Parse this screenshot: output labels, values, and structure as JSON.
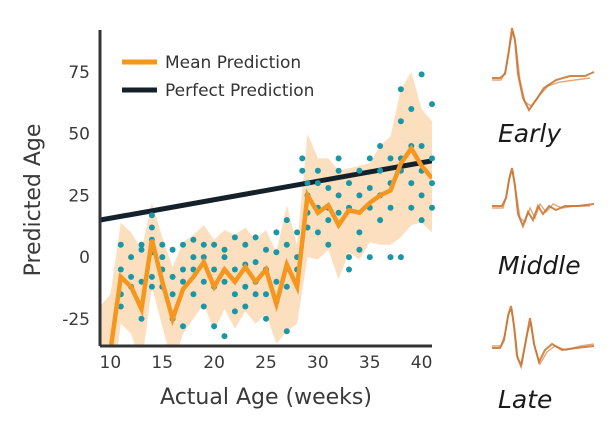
{
  "chart_data": {
    "type": "line",
    "xlabel": "Actual Age (weeks)",
    "ylabel": "Predicted Age",
    "xlim": [
      9,
      41
    ],
    "ylim": [
      -36,
      92
    ],
    "x_ticks": [
      10,
      15,
      20,
      25,
      30,
      35,
      40
    ],
    "y_ticks": [
      -25,
      0,
      25,
      50,
      75
    ],
    "legend_position": "top-left",
    "series": [
      {
        "name": "Mean Prediction",
        "type": "line",
        "color": "#f5961e",
        "x": [
          9,
          10,
          11,
          12,
          13,
          14,
          15,
          16,
          17,
          18,
          19,
          20,
          21,
          22,
          23,
          24,
          25,
          26,
          27,
          28,
          29,
          30,
          31,
          32,
          33,
          34,
          35,
          36,
          37,
          38,
          39,
          40,
          41
        ],
        "y": [
          -40,
          -38,
          -8,
          -12,
          -21,
          7,
          -10,
          -25,
          -13,
          -8,
          -2,
          -12,
          -5,
          -10,
          -4,
          -10,
          -5,
          -19,
          -3,
          -12,
          25,
          18,
          21,
          13,
          19,
          18,
          22,
          25,
          27,
          38,
          44,
          37,
          32
        ]
      },
      {
        "name": "Perfect Prediction",
        "type": "line",
        "color": "#14202a",
        "x": [
          9,
          41
        ],
        "y": [
          15,
          39
        ]
      }
    ],
    "confidence_band": {
      "color": "#fbd9b4",
      "x": [
        9,
        10,
        11,
        12,
        13,
        14,
        15,
        16,
        17,
        18,
        19,
        20,
        21,
        22,
        23,
        24,
        25,
        26,
        27,
        28,
        29,
        30,
        31,
        32,
        33,
        34,
        35,
        36,
        37,
        38,
        39,
        40,
        41
      ],
      "upper": [
        -20,
        -15,
        14,
        10,
        3,
        22,
        8,
        -4,
        6,
        9,
        13,
        7,
        11,
        9,
        12,
        7,
        11,
        2,
        21,
        5,
        50,
        40,
        40,
        35,
        36,
        37,
        38,
        45,
        49,
        68,
        75,
        60,
        55
      ],
      "lower": [
        -55,
        -60,
        -27,
        -31,
        -44,
        -12,
        -28,
        -44,
        -31,
        -25,
        -19,
        -30,
        -21,
        -29,
        -22,
        -27,
        -23,
        -35,
        -30,
        -27,
        0,
        -1,
        3,
        -9,
        2,
        -1,
        6,
        5,
        5,
        8,
        13,
        14,
        10
      ]
    },
    "scatter_points": {
      "color": "#1a97a6",
      "points": [
        [
          11,
          -5
        ],
        [
          11,
          -15
        ],
        [
          11,
          5
        ],
        [
          11,
          -20
        ],
        [
          12,
          -8
        ],
        [
          12,
          -12
        ],
        [
          12,
          0
        ],
        [
          13,
          3
        ],
        [
          13,
          -25
        ],
        [
          13,
          -10
        ],
        [
          13,
          5
        ],
        [
          14,
          12
        ],
        [
          14,
          7
        ],
        [
          14,
          -12
        ],
        [
          14,
          2
        ],
        [
          14,
          -8
        ],
        [
          14,
          17
        ],
        [
          15,
          -5
        ],
        [
          15,
          -12
        ],
        [
          15,
          5
        ],
        [
          15,
          0
        ],
        [
          16,
          -15
        ],
        [
          16,
          -25
        ],
        [
          16,
          -8
        ],
        [
          16,
          3
        ],
        [
          17,
          -28
        ],
        [
          17,
          -10
        ],
        [
          17,
          5
        ],
        [
          17,
          -5
        ],
        [
          18,
          0
        ],
        [
          18,
          -5
        ],
        [
          18,
          7
        ],
        [
          18,
          -15
        ],
        [
          19,
          -10
        ],
        [
          19,
          5
        ],
        [
          19,
          -20
        ],
        [
          19,
          0
        ],
        [
          20,
          -5
        ],
        [
          20,
          -28
        ],
        [
          20,
          5
        ],
        [
          20,
          -12
        ],
        [
          21,
          -32
        ],
        [
          21,
          -10
        ],
        [
          21,
          3
        ],
        [
          21,
          0
        ],
        [
          22,
          8
        ],
        [
          22,
          -5
        ],
        [
          22,
          -15
        ],
        [
          22,
          -22
        ],
        [
          23,
          -12
        ],
        [
          23,
          -3
        ],
        [
          23,
          5
        ],
        [
          23,
          -20
        ],
        [
          24,
          -10
        ],
        [
          24,
          -2
        ],
        [
          24,
          8
        ],
        [
          24,
          -15
        ],
        [
          25,
          -15
        ],
        [
          25,
          -5
        ],
        [
          25,
          3
        ],
        [
          25,
          -25
        ],
        [
          26,
          2
        ],
        [
          26,
          -10
        ],
        [
          26,
          10
        ],
        [
          26,
          -18
        ],
        [
          27,
          5
        ],
        [
          27,
          -30
        ],
        [
          27,
          15
        ],
        [
          27,
          -12
        ],
        [
          28,
          0
        ],
        [
          28,
          -5
        ],
        [
          28,
          10
        ],
        [
          28.5,
          40
        ],
        [
          28.5,
          35
        ],
        [
          29,
          25
        ],
        [
          29,
          18
        ],
        [
          29,
          30
        ],
        [
          29,
          12
        ],
        [
          30,
          30
        ],
        [
          30,
          20
        ],
        [
          30,
          10
        ],
        [
          30,
          35
        ],
        [
          31,
          15
        ],
        [
          31,
          28
        ],
        [
          31,
          5
        ],
        [
          31,
          20
        ],
        [
          32,
          35
        ],
        [
          32,
          25
        ],
        [
          32,
          40
        ],
        [
          32,
          18
        ],
        [
          33,
          30
        ],
        [
          33,
          0
        ],
        [
          33,
          -5
        ],
        [
          33,
          20
        ],
        [
          34,
          10
        ],
        [
          34,
          3
        ],
        [
          34,
          25
        ],
        [
          34,
          35
        ],
        [
          35,
          40
        ],
        [
          35,
          28
        ],
        [
          35,
          20
        ],
        [
          35,
          0
        ],
        [
          36,
          45
        ],
        [
          36,
          35
        ],
        [
          36,
          15
        ],
        [
          36,
          25
        ],
        [
          37,
          0
        ],
        [
          37,
          40
        ],
        [
          37,
          30
        ],
        [
          37,
          20
        ],
        [
          38,
          0
        ],
        [
          38,
          35
        ],
        [
          38,
          68
        ],
        [
          38,
          55
        ],
        [
          38,
          40
        ],
        [
          39,
          20
        ],
        [
          39,
          60
        ],
        [
          39,
          45
        ],
        [
          39,
          30
        ],
        [
          40,
          74
        ],
        [
          40,
          45
        ],
        [
          40,
          35
        ],
        [
          40,
          25
        ],
        [
          40,
          15
        ],
        [
          41,
          62
        ],
        [
          41,
          40
        ],
        [
          41,
          20
        ],
        [
          41,
          30
        ]
      ]
    }
  },
  "stages": [
    {
      "label": "Early",
      "color": "#c8702a"
    },
    {
      "label": "Middle",
      "color": "#c8702a"
    },
    {
      "label": "Late",
      "color": "#c8702a"
    }
  ]
}
